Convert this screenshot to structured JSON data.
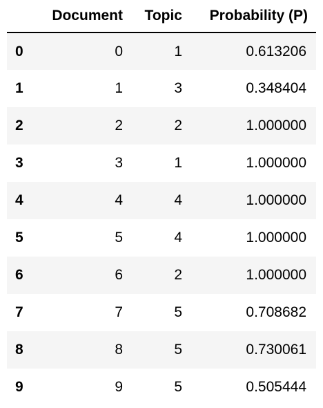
{
  "table": {
    "columns": {
      "index": "",
      "document": "Document",
      "topic": "Topic",
      "probability": "Probability (P)"
    },
    "rows": [
      {
        "index": "0",
        "document": "0",
        "topic": "1",
        "probability": "0.613206"
      },
      {
        "index": "1",
        "document": "1",
        "topic": "3",
        "probability": "0.348404"
      },
      {
        "index": "2",
        "document": "2",
        "topic": "2",
        "probability": "1.000000"
      },
      {
        "index": "3",
        "document": "3",
        "topic": "1",
        "probability": "1.000000"
      },
      {
        "index": "4",
        "document": "4",
        "topic": "4",
        "probability": "1.000000"
      },
      {
        "index": "5",
        "document": "5",
        "topic": "4",
        "probability": "1.000000"
      },
      {
        "index": "6",
        "document": "6",
        "topic": "2",
        "probability": "1.000000"
      },
      {
        "index": "7",
        "document": "7",
        "topic": "5",
        "probability": "0.708682"
      },
      {
        "index": "8",
        "document": "8",
        "topic": "5",
        "probability": "0.730061"
      },
      {
        "index": "9",
        "document": "9",
        "topic": "5",
        "probability": "0.505444"
      }
    ]
  }
}
